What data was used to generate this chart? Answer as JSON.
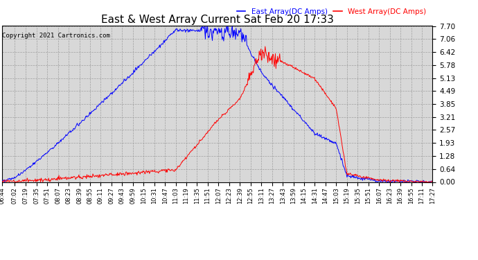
{
  "title": "East & West Array Current Sat Feb 20 17:33",
  "copyright": "Copyright 2021 Cartronics.com",
  "legend_east": "East Array(DC Amps)",
  "legend_west": "West Array(DC Amps)",
  "east_color": "blue",
  "west_color": "red",
  "bg_color": "#ffffff",
  "plot_bg_color": "#d8d8d8",
  "ymin": 0.0,
  "ymax": 7.7,
  "yticks": [
    0.0,
    0.64,
    1.28,
    1.93,
    2.57,
    3.21,
    3.85,
    4.49,
    5.13,
    5.78,
    6.42,
    7.06,
    7.7
  ],
  "xtick_labels": [
    "06:44",
    "07:02",
    "07:19",
    "07:35",
    "07:51",
    "08:07",
    "08:23",
    "08:39",
    "08:55",
    "09:11",
    "09:27",
    "09:43",
    "09:59",
    "10:15",
    "10:31",
    "10:47",
    "11:03",
    "11:19",
    "11:35",
    "11:51",
    "12:07",
    "12:23",
    "12:39",
    "12:55",
    "13:11",
    "13:27",
    "13:43",
    "13:59",
    "14:15",
    "14:31",
    "14:47",
    "15:03",
    "15:19",
    "15:35",
    "15:51",
    "16:07",
    "16:23",
    "16:39",
    "16:55",
    "17:11",
    "17:27"
  ]
}
